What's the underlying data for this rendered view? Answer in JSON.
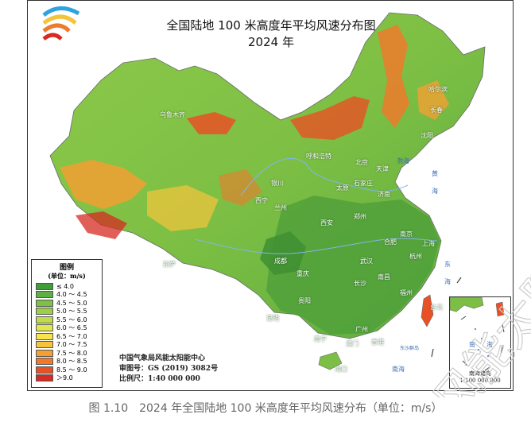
{
  "map": {
    "title_line1": "全国陆地 100 米高度年平均风速分布图",
    "title_line2": "2024 年"
  },
  "legend": {
    "title": "图例",
    "unit": "(单位：m/s)",
    "entries": [
      {
        "label": "≤ 4.0",
        "color": "#3f9e3a"
      },
      {
        "label": "4.0 ～ 4.5",
        "color": "#5cb044"
      },
      {
        "label": "4.5 ～ 5.0",
        "color": "#7cc046"
      },
      {
        "label": "5.0 ～ 5.5",
        "color": "#9dce48"
      },
      {
        "label": "5.5 ～ 6.0",
        "color": "#bfdc4a"
      },
      {
        "label": "6.0 ～ 6.5",
        "color": "#e0e84c"
      },
      {
        "label": "6.5 ～ 7.0",
        "color": "#f7e34a"
      },
      {
        "label": "7.0 ～ 7.5",
        "color": "#f6c43c"
      },
      {
        "label": "7.5 ～ 8.0",
        "color": "#f2a033"
      },
      {
        "label": "8.0 ～ 8.5",
        "color": "#ee7a2c"
      },
      {
        "label": "8.5 ～ 9.0",
        "color": "#e85126"
      },
      {
        "label": "＞9.0",
        "color": "#d62a22"
      }
    ]
  },
  "info": {
    "org": "中国气象局风能太阳能中心",
    "approval": "审图号：GS (2019) 3082号",
    "scale": "比例尺：1:40 000 000"
  },
  "inset": {
    "label_south": "南",
    "label_sea": "海",
    "caption_line1": "南海诸岛",
    "caption_line2": "1:100 000 000"
  },
  "seas": {
    "bohai": "渤海",
    "huanghai_1": "黄",
    "huanghai_2": "海",
    "donghai_1": "东",
    "donghai_2": "海",
    "nanhai": "南海",
    "dongsha": "东沙群岛"
  },
  "cities": [
    {
      "name": "哈尔滨"
    },
    {
      "name": "长春"
    },
    {
      "name": "沈阳"
    },
    {
      "name": "乌鲁木齐"
    },
    {
      "name": "呼和浩特"
    },
    {
      "name": "北京"
    },
    {
      "name": "天津"
    },
    {
      "name": "石家庄"
    },
    {
      "name": "太原"
    },
    {
      "name": "济南"
    },
    {
      "name": "银川"
    },
    {
      "name": "西宁"
    },
    {
      "name": "兰州"
    },
    {
      "name": "郑州"
    },
    {
      "name": "西安"
    },
    {
      "name": "南京"
    },
    {
      "name": "合肥"
    },
    {
      "name": "上海"
    },
    {
      "name": "杭州"
    },
    {
      "name": "武汉"
    },
    {
      "name": "拉萨"
    },
    {
      "name": "成都"
    },
    {
      "name": "重庆"
    },
    {
      "name": "长沙"
    },
    {
      "name": "南昌"
    },
    {
      "name": "福州"
    },
    {
      "name": "台北"
    },
    {
      "name": "贵阳"
    },
    {
      "name": "昆明"
    },
    {
      "name": "南宁"
    },
    {
      "name": "广州"
    },
    {
      "name": "香港"
    },
    {
      "name": "澳门"
    },
    {
      "name": "海口"
    }
  ],
  "figure_caption": "图 1.10　2024 年全国陆地 100 米高度年平均风速分布（单位：m/s）",
  "watermark_text": "风能太阳能中心"
}
